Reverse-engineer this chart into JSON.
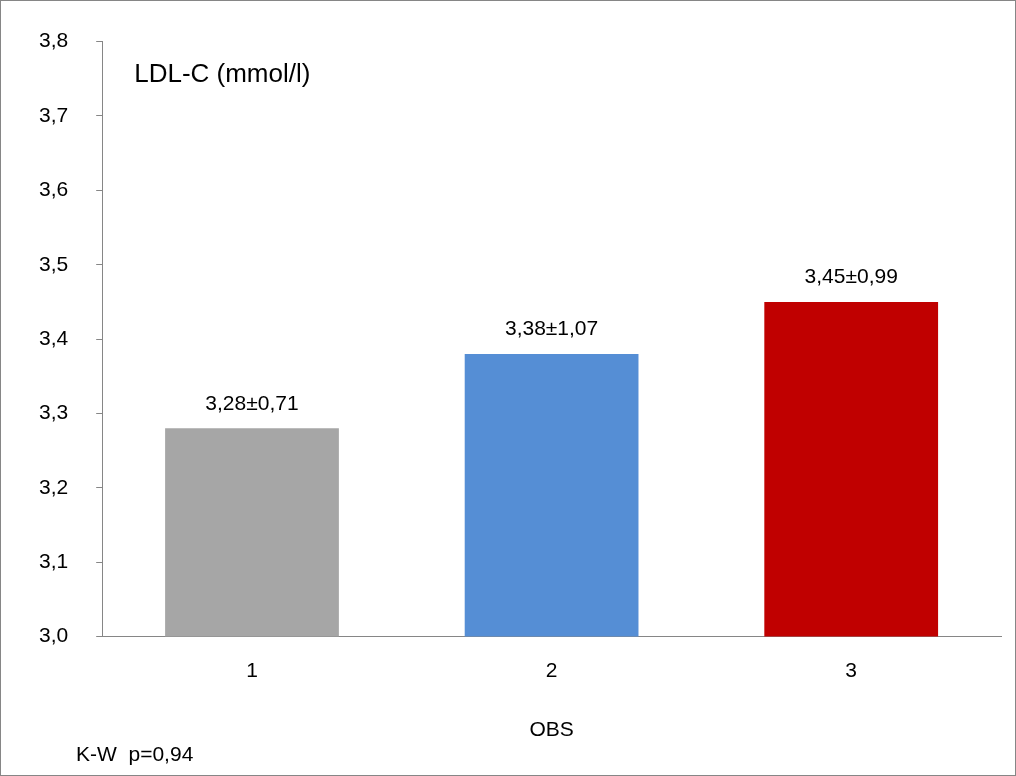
{
  "chart_data": {
    "type": "bar",
    "title": "LDL-C (mmol/l)",
    "xlabel": "OBS",
    "categories": [
      "1",
      "2",
      "3"
    ],
    "values": [
      3.28,
      3.38,
      3.45
    ],
    "colors": [
      "#a6a6a6",
      "#558ed5",
      "#c00000"
    ],
    "value_labels": [
      "3,28±0,71",
      "3,38±1,07",
      "3,45±0,99"
    ],
    "ylim": [
      3,
      3.8
    ],
    "yticks": [
      {
        "value": 3,
        "label": "3,0"
      },
      {
        "value": 3.1,
        "label": "3,1"
      },
      {
        "value": 3.2,
        "label": "3,2"
      },
      {
        "value": 3.3,
        "label": "3,3"
      },
      {
        "value": 3.4,
        "label": "3,4"
      },
      {
        "value": 3.5,
        "label": "3,5"
      },
      {
        "value": 3.6,
        "label": "3,6"
      },
      {
        "value": 3.7,
        "label": "3,7"
      },
      {
        "value": 3.8,
        "label": "3,8"
      }
    ],
    "annotations": [
      "K-W  p=0,94"
    ],
    "grid": false,
    "legend": false
  }
}
